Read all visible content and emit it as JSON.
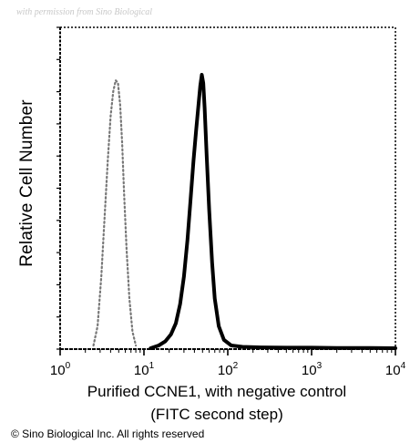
{
  "watermark": "with permission from Sino Biological",
  "copyright": "© Sino Biological Inc. All rights reserved",
  "chart_data": {
    "type": "line",
    "title": "",
    "xlabel": "Purified CCNE1, with negative control",
    "xlabel_line2": "(FITC second step)",
    "ylabel": "Relative Cell Number",
    "x_scale": "log",
    "xlim": [
      1,
      10000
    ],
    "ylim": [
      0,
      1
    ],
    "grid": false,
    "legend": "none",
    "x_ticks": [
      {
        "value": 1,
        "base": "10",
        "exp": "0"
      },
      {
        "value": 10,
        "base": "10",
        "exp": "1"
      },
      {
        "value": 100,
        "base": "10",
        "exp": "2"
      },
      {
        "value": 1000,
        "base": "10",
        "exp": "3"
      },
      {
        "value": 10000,
        "base": "10",
        "exp": "4"
      }
    ],
    "series": [
      {
        "style": "dotted",
        "color": "#777777",
        "x": [
          2.5,
          2.8,
          3.1,
          3.4,
          3.7,
          4.0,
          4.3,
          4.6,
          4.9,
          5.2,
          5.5,
          5.8,
          6.2,
          6.7,
          7.3,
          8.0
        ],
        "y": [
          0.01,
          0.08,
          0.26,
          0.48,
          0.68,
          0.84,
          0.93,
          0.97,
          0.96,
          0.88,
          0.74,
          0.56,
          0.36,
          0.18,
          0.06,
          0.01
        ]
      },
      {
        "style": "solid",
        "color": "#000000",
        "x": [
          12,
          15,
          18,
          21,
          24,
          27,
          30,
          33,
          36,
          39,
          42,
          45,
          47,
          49,
          51,
          53,
          56,
          60,
          65,
          70,
          78,
          90,
          110,
          150,
          250,
          500,
          1000,
          2000,
          5000,
          10000
        ],
        "y": [
          0.0,
          0.01,
          0.025,
          0.05,
          0.09,
          0.16,
          0.26,
          0.39,
          0.54,
          0.68,
          0.79,
          0.89,
          0.95,
          0.99,
          0.96,
          0.87,
          0.7,
          0.5,
          0.31,
          0.18,
          0.08,
          0.03,
          0.01,
          0.005,
          0.003,
          0.002,
          0.002,
          0.001,
          0.001,
          0.0
        ]
      }
    ]
  }
}
